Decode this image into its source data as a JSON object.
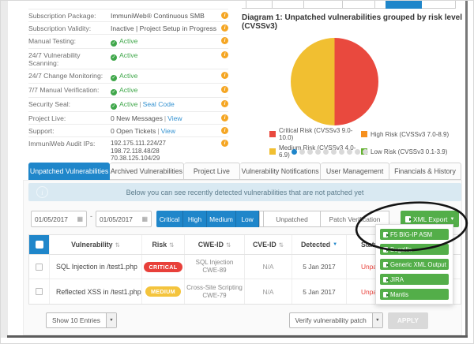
{
  "info_panel": {
    "rows": [
      {
        "label": "Subscription Package:",
        "value": "ImmuniWeb® Continuous SMB"
      },
      {
        "label": "Subscription Validity:",
        "value": "Inactive | Project Setup in Progress"
      },
      {
        "label": "Manual Testing:",
        "status": "Active"
      },
      {
        "label": "24/7 Vulnerability Scanning:",
        "status": "Active"
      },
      {
        "label": "24/7 Change Monitoring:",
        "status": "Active"
      },
      {
        "label": "7/7 Manual Verification:",
        "status": "Active"
      },
      {
        "label": "Security Seal:",
        "status": "Active",
        "sep": "|",
        "link": "Seal Code"
      },
      {
        "label": "Project Live:",
        "value": "0 New Messages",
        "sep": "|",
        "link": "View"
      },
      {
        "label": "Support:",
        "value": "0 Open Tickets",
        "sep": "|",
        "link": "View"
      },
      {
        "label": "ImmuniWeb Audit IPs:",
        "ips": [
          "192.175.111.224/27",
          "198.72.118.48/28",
          "70.38.125.104/29"
        ]
      }
    ]
  },
  "chart_data": {
    "type": "pie",
    "title": "Diagram 1: Unpatched vulnerabilities grouped by risk level (CVSSv3)",
    "slices": [
      {
        "label": "Critical Risk (CVSSv3 9.0-10.0)",
        "percent": 50,
        "color": "#e9493e"
      },
      {
        "label": "High Risk (CVSSv3 7.0-8.9)",
        "percent": 0,
        "color": "#f6901e"
      },
      {
        "label": "Medium Risk (CVSSv3 4.0-6.9)",
        "percent": 50,
        "color": "#f1bf31"
      },
      {
        "label": "Low Risk (CVSSv3 0.1-3.9)",
        "percent": 0,
        "color": "#63b22f"
      }
    ],
    "legend_position": "bottom",
    "pagination": {
      "total_dots": 10,
      "active_dot": 1
    }
  },
  "tabs": {
    "items": [
      {
        "label": "Unpatched Vulnerabilities",
        "active": true
      },
      {
        "label": "Archived Vulnerabilities",
        "active": false
      },
      {
        "label": "Project Live",
        "active": false
      },
      {
        "label": "Vulnerability Notifications",
        "active": false
      },
      {
        "label": "User Management",
        "active": false
      },
      {
        "label": "Financials & History",
        "active": false
      }
    ]
  },
  "info_bar": {
    "message": "Below you can see recently detected vulnerabilities that are not patched yet"
  },
  "filters": {
    "date_from": "01/05/2017",
    "date_separator": "-",
    "date_to": "01/05/2017",
    "severity": [
      "Critical",
      "High",
      "Medium",
      "Low"
    ],
    "warning": "Warning",
    "states": [
      "Unpatched",
      "Patch Verification"
    ],
    "export_label": "XML Export",
    "export_color": "#53ae49",
    "active_blue": "#1f86ca"
  },
  "export_menu": {
    "items": [
      "F5 BIG-IP ASM",
      "Bugzilla",
      "Generic XML Output",
      "JIRA",
      "Mantis"
    ]
  },
  "table": {
    "columns": [
      {
        "label": "Vulnerability"
      },
      {
        "label": "Risk"
      },
      {
        "label": "CWE-ID"
      },
      {
        "label": "CVE-ID"
      },
      {
        "label": "Detected",
        "sorted": "desc"
      },
      {
        "label": "Status"
      }
    ],
    "rows": [
      {
        "name": "SQL Injection in /test1.php",
        "risk": "CRITICAL",
        "risk_color": "#e8403a",
        "cwe_name": "SQL Injection",
        "cwe_id": "CWE-89",
        "cve": "N/A",
        "detected": "5 Jan 2017",
        "status": "Unpatched"
      },
      {
        "name": "Reflected XSS in /test1.php",
        "risk": "MEDIUM",
        "risk_color": "#f4c43d",
        "cwe_name": "Cross-Site Scripting",
        "cwe_id": "CWE-79",
        "cve": "N/A",
        "detected": "5 Jan 2017",
        "status": "Unpatched"
      }
    ]
  },
  "footer": {
    "show_entries": "Show 10 Entries",
    "action_select": "Verify vulnerability patch",
    "apply": "APPLY"
  }
}
